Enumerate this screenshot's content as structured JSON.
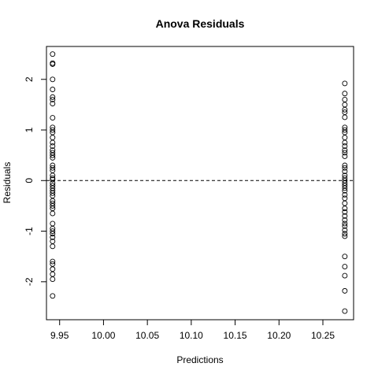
{
  "chart_data": {
    "type": "scatter",
    "title": "Anova Residuals",
    "xlabel": "Predictions",
    "ylabel": "Residuals",
    "xlim": [
      9.935,
      10.285
    ],
    "ylim": [
      -2.75,
      2.65
    ],
    "xticks": [
      9.95,
      10.0,
      10.05,
      10.1,
      10.15,
      10.2,
      10.25
    ],
    "xtick_labels": [
      "9.95",
      "10.00",
      "10.05",
      "10.10",
      "10.15",
      "10.20",
      "10.25"
    ],
    "yticks": [
      -2,
      -1,
      0,
      1,
      2
    ],
    "ytick_labels": [
      "-2",
      "-1",
      "0",
      "1",
      "2"
    ],
    "reference_line_y": 0,
    "grid": false,
    "legend": "none",
    "series": [
      {
        "x": 9.942,
        "y": [
          2.5,
          2.32,
          2.3,
          2.0,
          1.8,
          1.65,
          1.6,
          1.52,
          1.24,
          1.05,
          1.0,
          0.95,
          0.85,
          0.75,
          0.68,
          0.6,
          0.55,
          0.5,
          0.45,
          0.3,
          0.25,
          0.2,
          0.1,
          0.05,
          0.02,
          -0.05,
          -0.1,
          -0.15,
          -0.2,
          -0.25,
          -0.3,
          -0.4,
          -0.45,
          -0.5,
          -0.55,
          -0.65,
          -0.85,
          -0.95,
          -1.0,
          -1.05,
          -1.12,
          -1.2,
          -1.3,
          -1.6,
          -1.65,
          -1.75,
          -1.85,
          -1.95,
          -2.28
        ]
      },
      {
        "x": 10.275,
        "y": [
          1.92,
          1.72,
          1.6,
          1.5,
          1.4,
          1.35,
          1.25,
          1.05,
          1.0,
          0.95,
          0.85,
          0.75,
          0.68,
          0.6,
          0.55,
          0.48,
          0.3,
          0.25,
          0.18,
          0.1,
          0.05,
          0.0,
          -0.05,
          -0.1,
          -0.15,
          -0.2,
          -0.28,
          -0.35,
          -0.45,
          -0.55,
          -0.62,
          -0.7,
          -0.78,
          -0.85,
          -0.9,
          -0.98,
          -1.05,
          -1.1,
          -1.5,
          -1.7,
          -1.88,
          -2.18,
          -2.58
        ]
      }
    ]
  }
}
